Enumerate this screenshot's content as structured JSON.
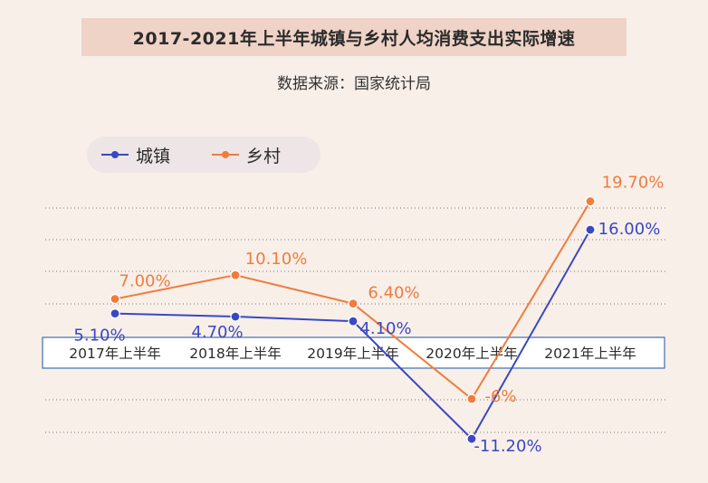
{
  "title": "2017-2021年上半年城镇与乡村人均消费支出实际增速",
  "source": "数据来源：国家统计局",
  "colors": {
    "urban": "#3a48c2",
    "rural": "#f07c3c",
    "grid": "#7a7a7a",
    "axis_box_border": "#3e6fb0"
  },
  "chart_data": {
    "type": "line",
    "categories": [
      "2017年上半年",
      "2018年上半年",
      "2019年上半年",
      "2020年上半年",
      "2021年上半年"
    ],
    "series": [
      {
        "name": "城镇",
        "values": [
          5.1,
          4.7,
          4.1,
          -11.2,
          16.0
        ],
        "labels": [
          "5.10%",
          "4.70%",
          "4.10%",
          "-11.20%",
          "16.00%"
        ]
      },
      {
        "name": "乡村",
        "values": [
          7.0,
          10.1,
          6.4,
          -6.0,
          19.7
        ],
        "labels": [
          "7.00%",
          "10.10%",
          "6.40%",
          "-6%",
          "19.70%"
        ]
      }
    ],
    "legend_position": "top-left",
    "grid": true
  }
}
